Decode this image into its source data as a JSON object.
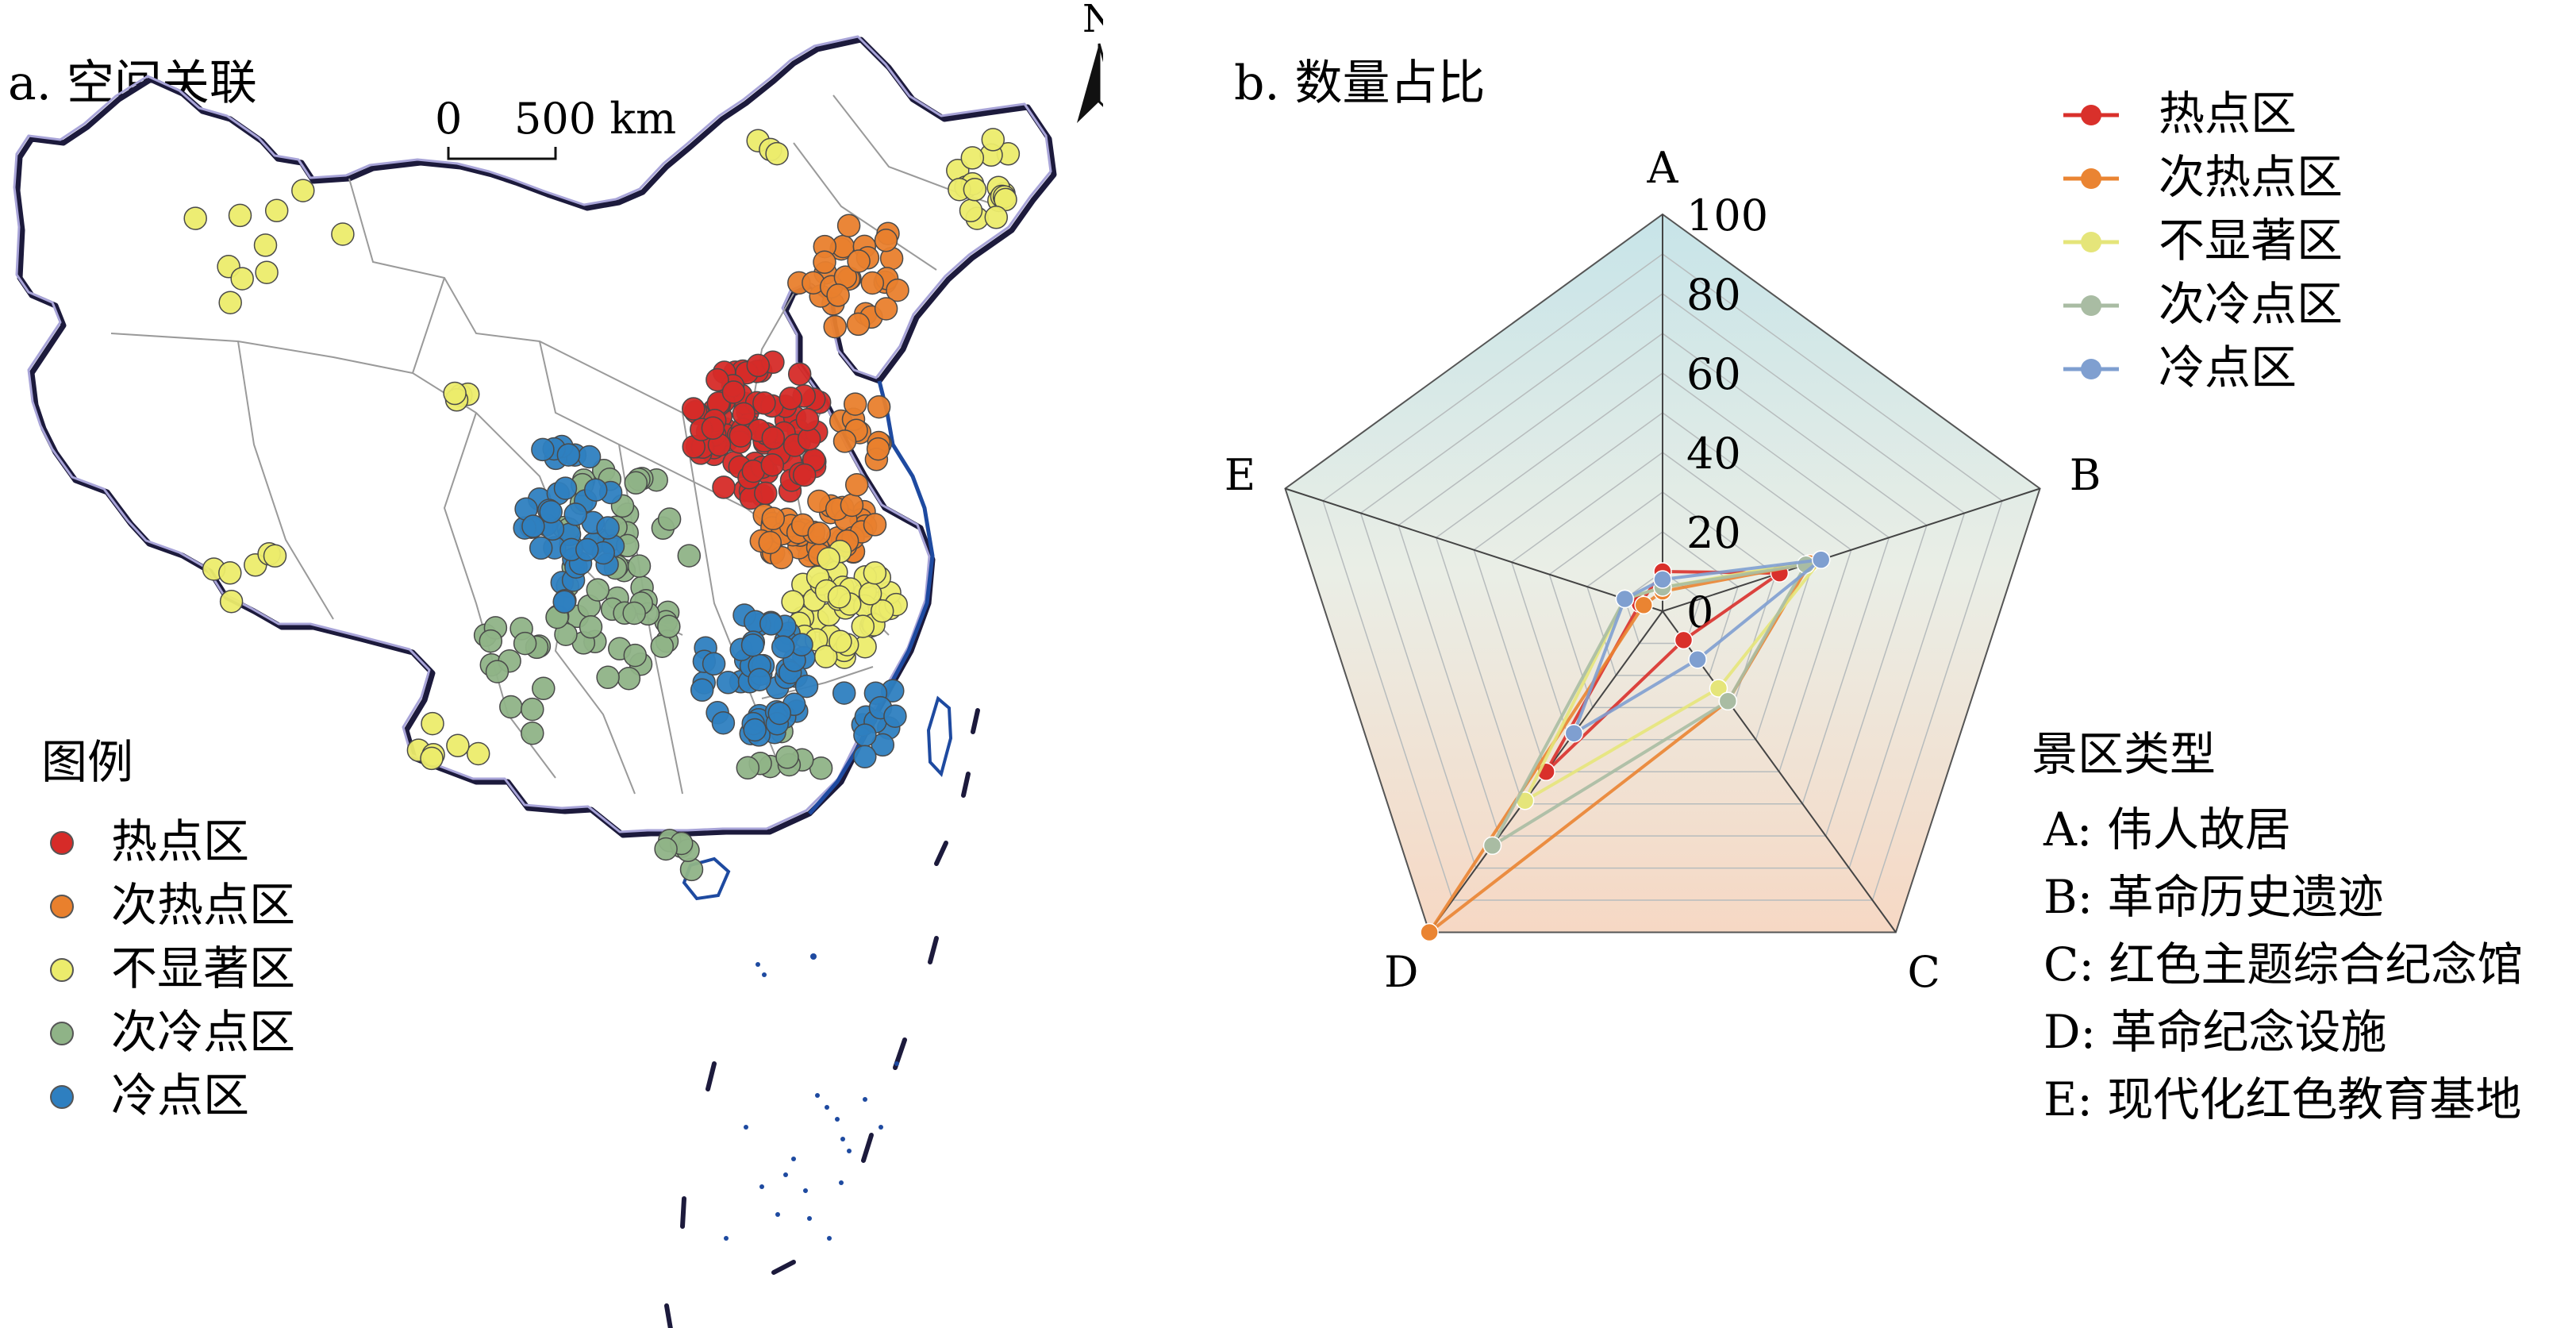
{
  "panel_a": {
    "title": "a. 空间关联",
    "north_label": "N",
    "scale_zero": "0",
    "scale_label": "500 km",
    "legend_title": "图例",
    "legend": [
      {
        "label": "热点区",
        "color": "#d62b28"
      },
      {
        "label": "次热点区",
        "color": "#e9802d"
      },
      {
        "label": "不显著区",
        "color": "#ecec6c"
      },
      {
        "label": "次冷点区",
        "color": "#8fb387"
      },
      {
        "label": "冷点区",
        "color": "#2e7fc0"
      }
    ]
  },
  "panel_b": {
    "title": "b. 数量占比",
    "legend": [
      {
        "label": "热点区",
        "color": "#d9302b"
      },
      {
        "label": "次热点区",
        "color": "#ea8432"
      },
      {
        "label": "不显著区",
        "color": "#e5e57a"
      },
      {
        "label": "次冷点区",
        "color": "#a9bca3"
      },
      {
        "label": "冷点区",
        "color": "#7f9fd0"
      }
    ],
    "type_title": "景区类型",
    "types": [
      "A: 伟人故居",
      "B: 革命历史遗迹",
      "C: 红色主题综合纪念馆",
      "D: 革命纪念设施",
      "E: 现代化红色教育基地"
    ]
  },
  "chart_data": {
    "type": "radar",
    "title": "b. 数量占比",
    "axes": [
      "A",
      "B",
      "C",
      "D",
      "E"
    ],
    "ticks": [
      "0",
      "20",
      "40",
      "60",
      "80",
      "100"
    ],
    "range": [
      0,
      100
    ],
    "series": [
      {
        "name": "热点区",
        "color": "#d9302b",
        "values": [
          10,
          31,
          9,
          50,
          6
        ]
      },
      {
        "name": "次热点区",
        "color": "#ea8432",
        "values": [
          5,
          39,
          28,
          100,
          5
        ]
      },
      {
        "name": "不显著区",
        "color": "#e5e57a",
        "values": [
          6,
          42,
          24,
          59,
          10
        ]
      },
      {
        "name": "次冷点区",
        "color": "#a9bca3",
        "values": [
          6,
          38,
          28,
          73,
          10
        ]
      },
      {
        "name": "冷点区",
        "color": "#7f9fd0",
        "values": [
          8,
          42,
          15,
          38,
          10
        ]
      }
    ]
  }
}
